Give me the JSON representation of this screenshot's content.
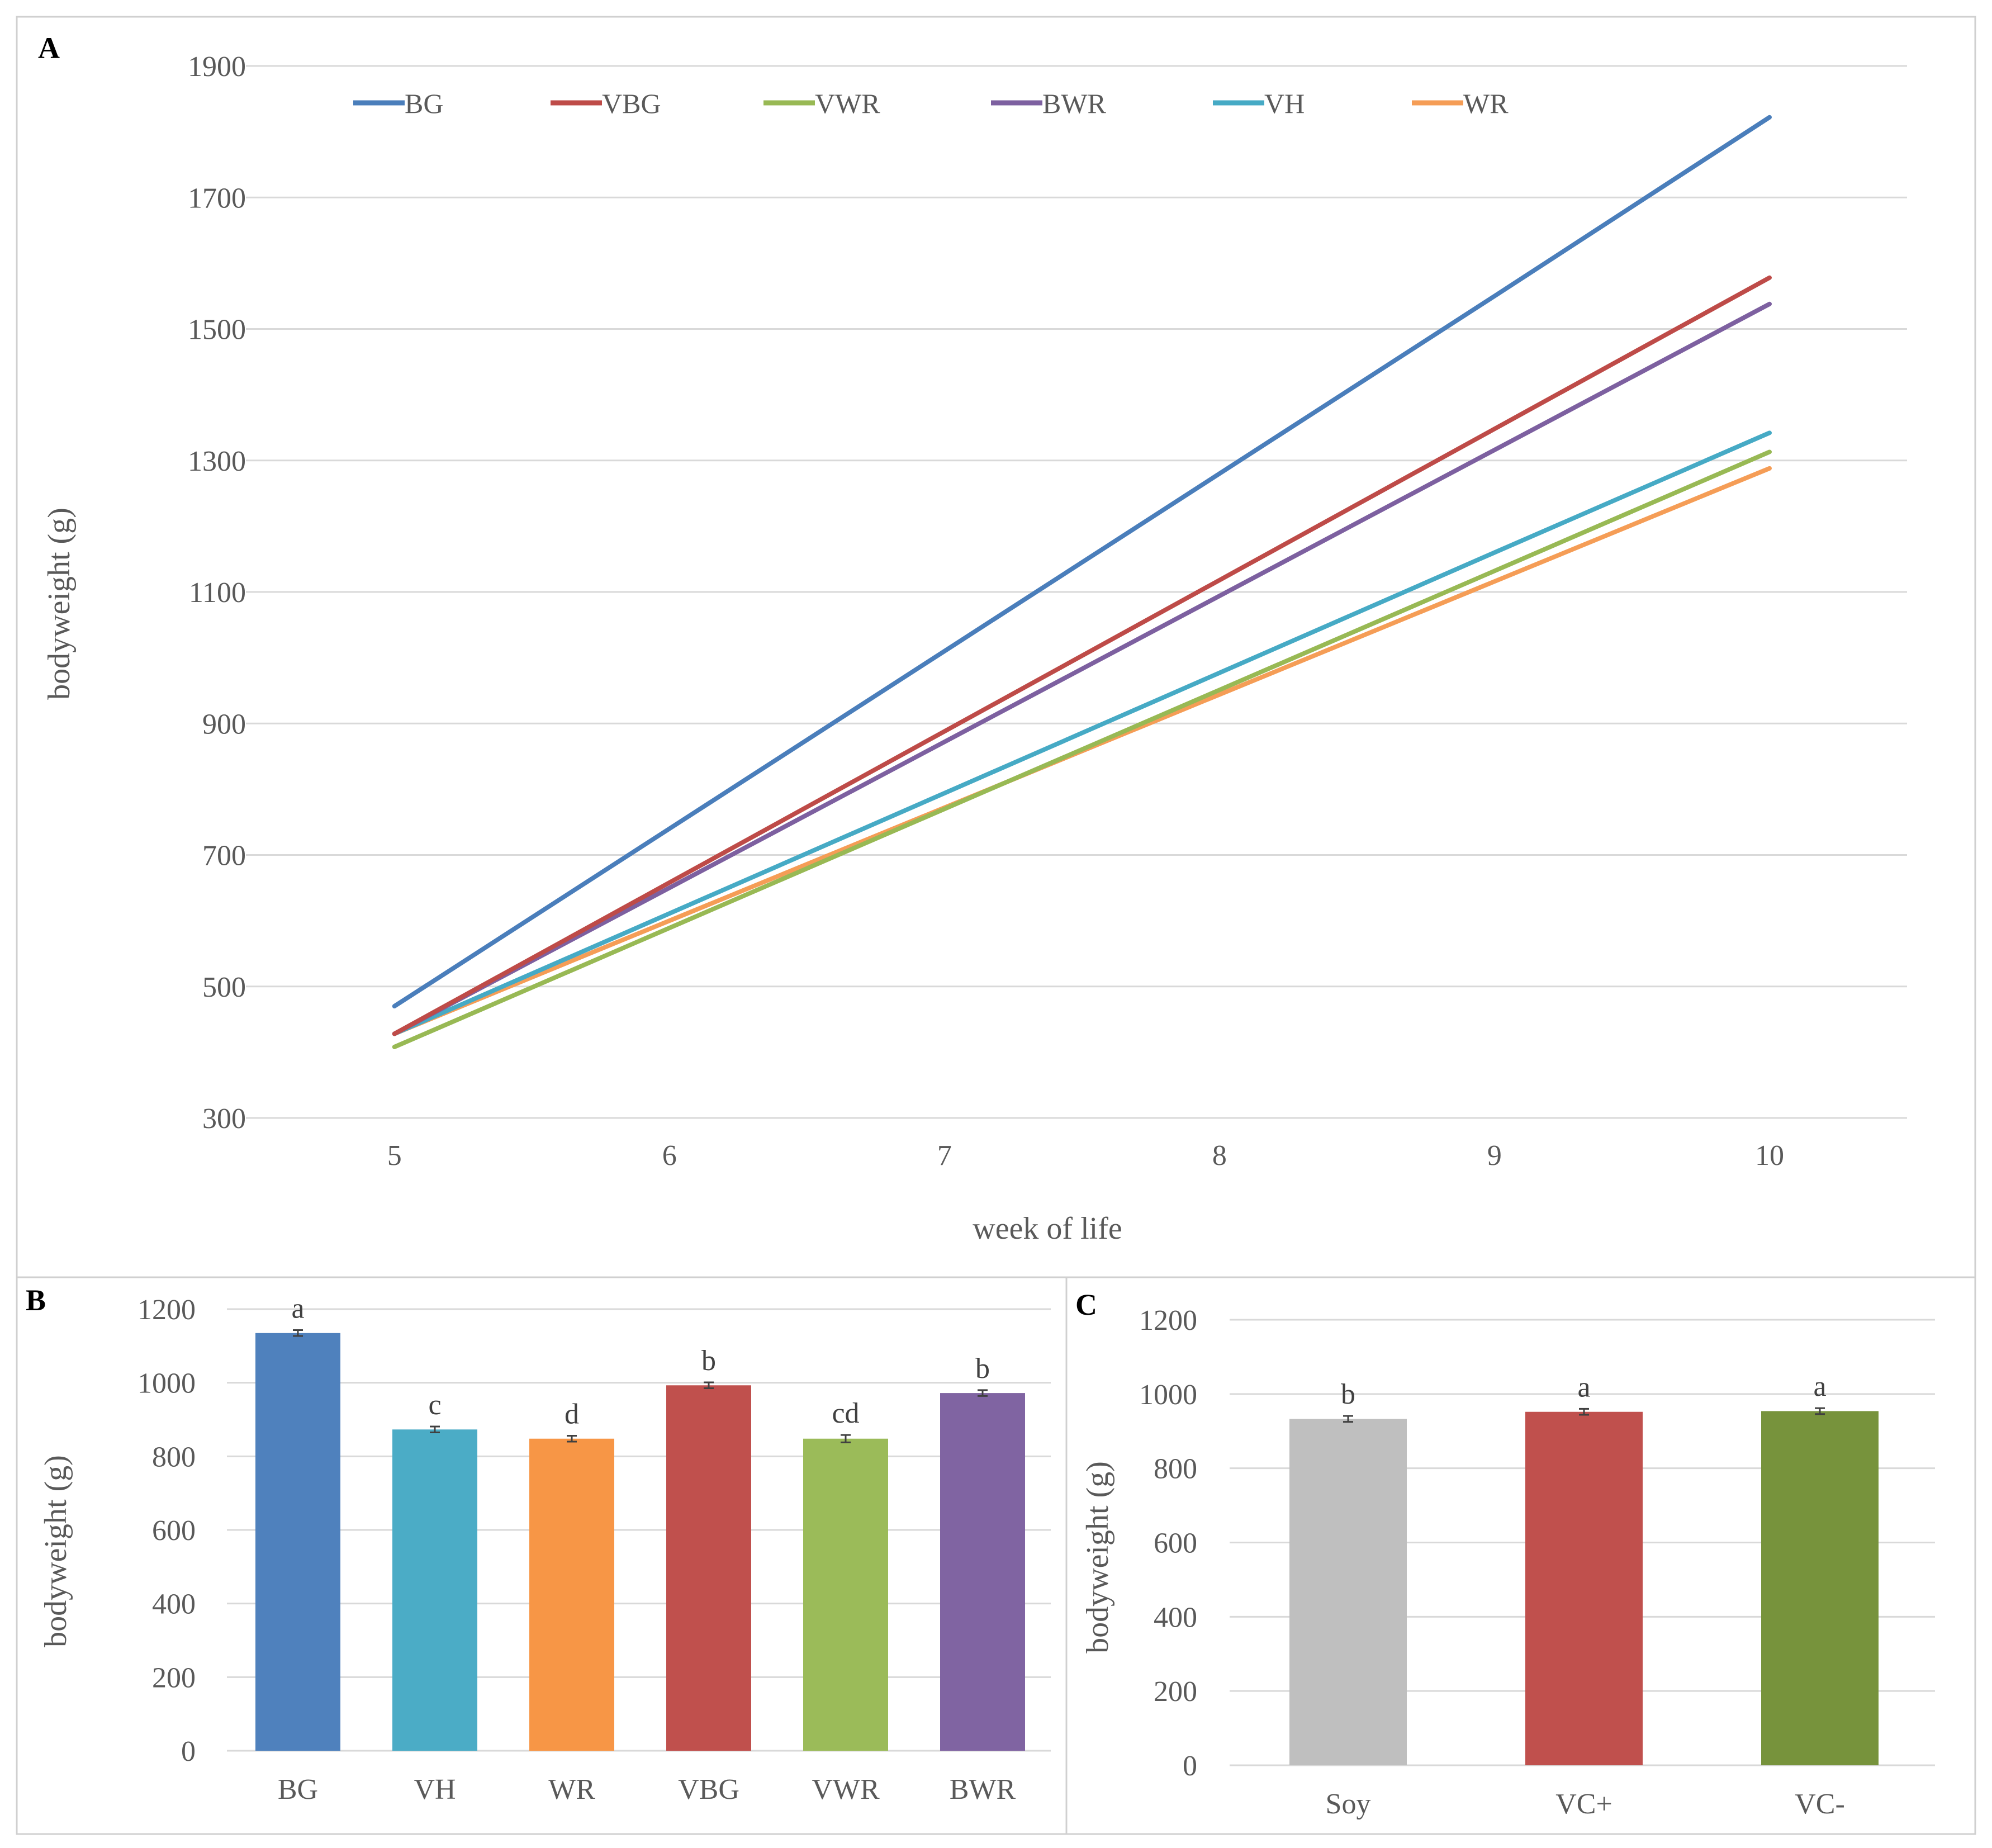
{
  "chart_data": [
    {
      "panel": "A",
      "type": "line",
      "title": "",
      "xlabel": "week of life",
      "ylabel": "bodyweight (g)",
      "x": [
        5,
        6,
        7,
        8,
        9,
        10
      ],
      "xlim": [
        4.46,
        10.5
      ],
      "ylim": [
        300,
        1900
      ],
      "yticks": [
        300,
        500,
        700,
        900,
        1100,
        1300,
        1500,
        1700,
        1900
      ],
      "grid": true,
      "legend": "top",
      "series": [
        {
          "name": "BG",
          "color": "#4a7ebb",
          "values": [
            470,
            740,
            1010,
            1280,
            1550,
            1822
          ]
        },
        {
          "name": "VBG",
          "color": "#be4b48",
          "values": [
            428,
            658,
            888,
            1118,
            1348,
            1578
          ]
        },
        {
          "name": "VWR",
          "color": "#98b954",
          "values": [
            408,
            589,
            770,
            951,
            1132,
            1313
          ]
        },
        {
          "name": "BWR",
          "color": "#7d60a0",
          "values": [
            428,
            650,
            872,
            1094,
            1316,
            1538
          ]
        },
        {
          "name": "VH",
          "color": "#46aac5",
          "values": [
            428,
            611,
            794,
            977,
            1160,
            1342
          ]
        },
        {
          "name": "WR",
          "color": "#f59d56",
          "values": [
            428,
            600,
            772,
            944,
            1116,
            1288
          ]
        }
      ]
    },
    {
      "panel": "B",
      "type": "bar",
      "title": "",
      "xlabel": "",
      "ylabel": "bodyweight (g)",
      "ylim": [
        0,
        1200
      ],
      "yticks": [
        0,
        200,
        400,
        600,
        800,
        1000,
        1200
      ],
      "grid": true,
      "categories": [
        "BG",
        "VH",
        "WR",
        "VBG",
        "VWR",
        "BWR"
      ],
      "values": [
        1135,
        873,
        848,
        993,
        848,
        972
      ],
      "errors": [
        8,
        8,
        8,
        8,
        10,
        8
      ],
      "letters": [
        "a",
        "c",
        "d",
        "b",
        "cd",
        "b"
      ],
      "colors": [
        "#4f81bd",
        "#4bacc6",
        "#f79646",
        "#c0504d",
        "#9bbb59",
        "#8064a2"
      ]
    },
    {
      "panel": "C",
      "type": "bar",
      "title": "",
      "xlabel": "",
      "ylabel": "bodyweight (g)",
      "ylim": [
        0,
        1200
      ],
      "yticks": [
        0,
        200,
        400,
        600,
        800,
        1000,
        1200
      ],
      "grid": true,
      "categories": [
        "Soy",
        "VC+",
        "VC-"
      ],
      "values": [
        933,
        952,
        954
      ],
      "errors": [
        8,
        8,
        8
      ],
      "letters": [
        "b",
        "a",
        "a"
      ],
      "colors": [
        "#bfbfbf",
        "#c0504d",
        "#77933c"
      ]
    }
  ]
}
